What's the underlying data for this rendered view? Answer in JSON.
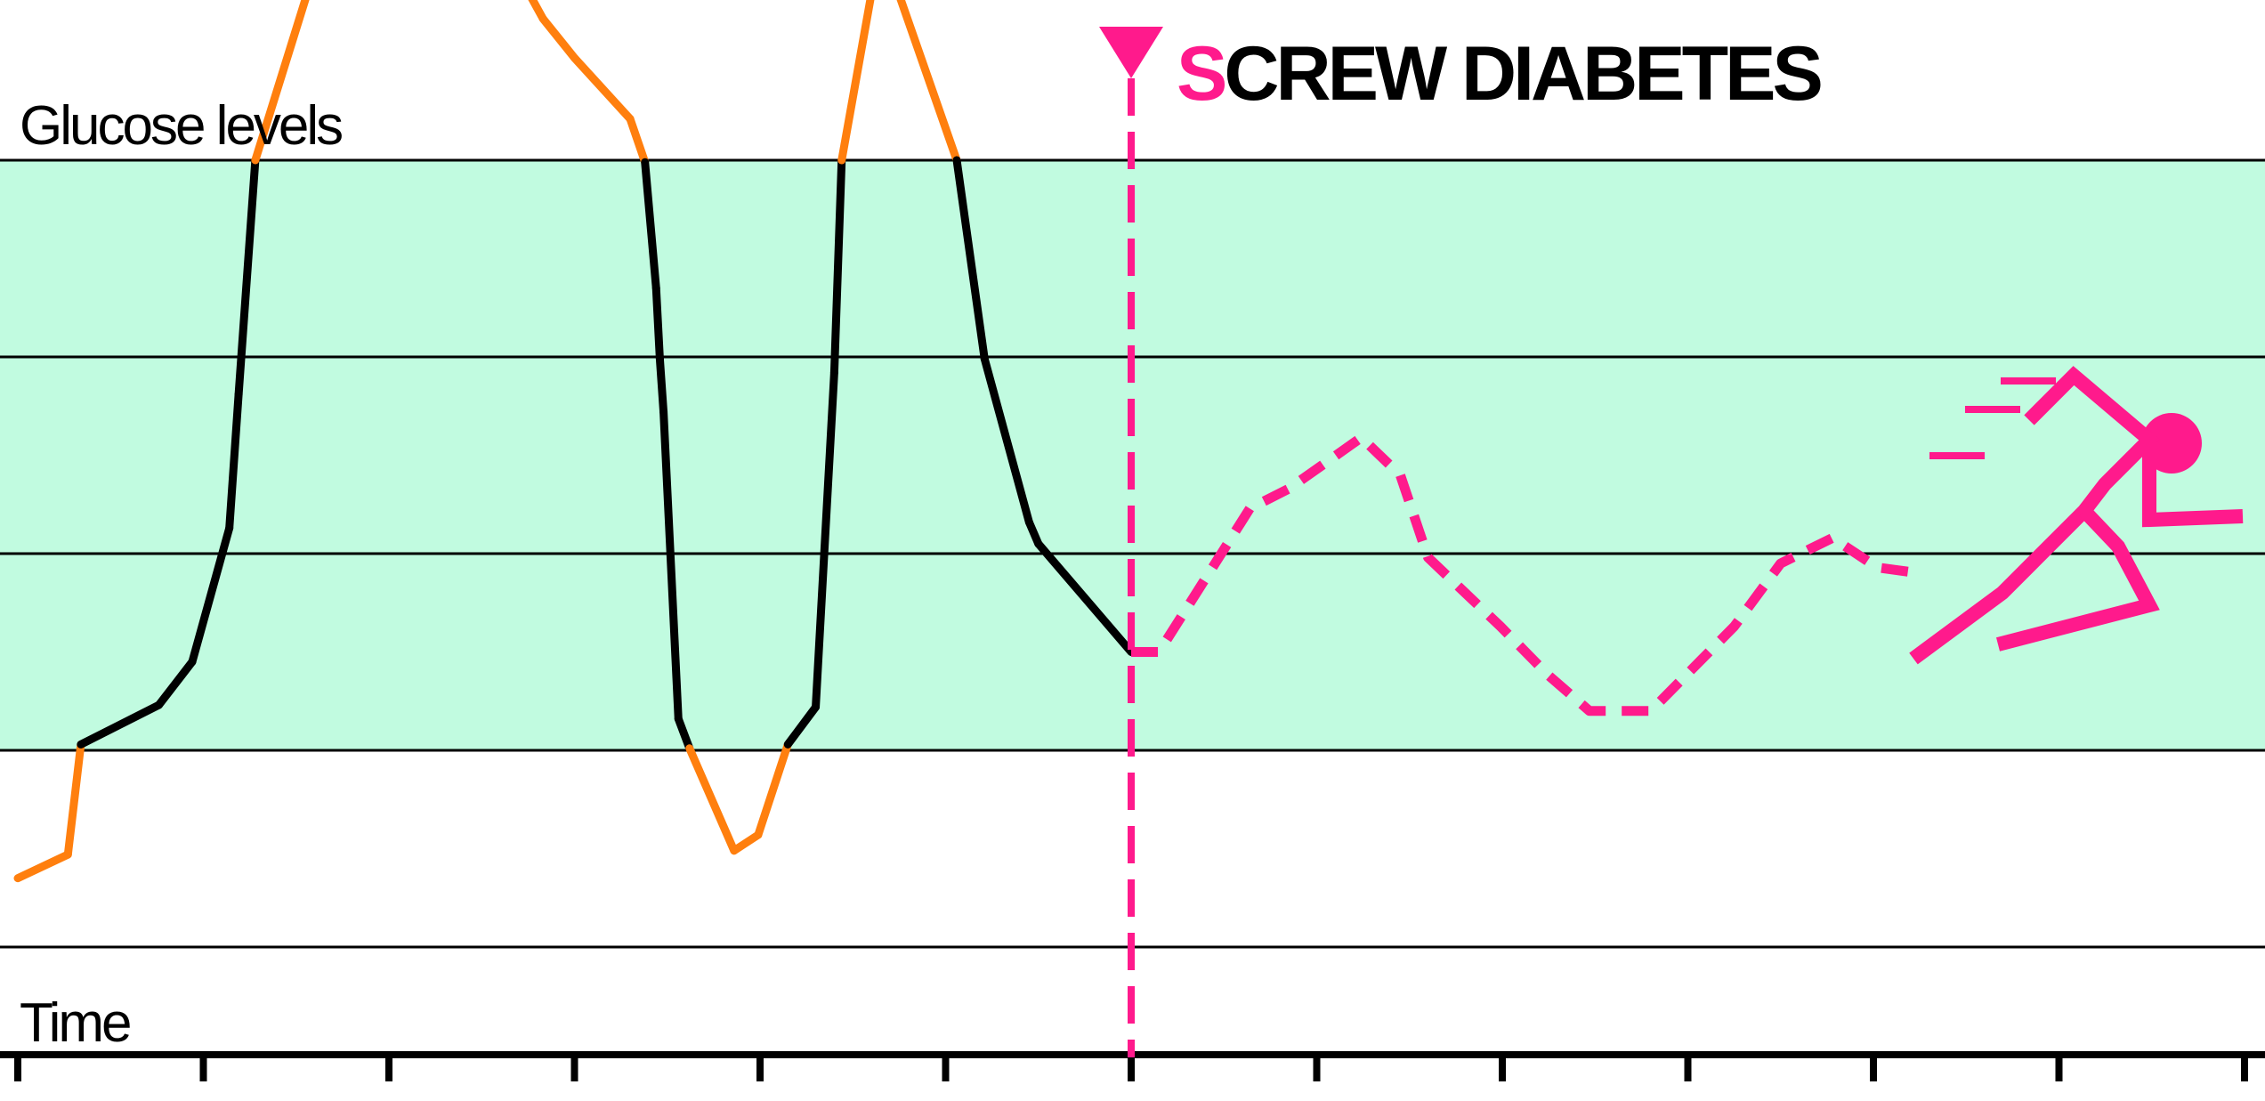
{
  "chart_data": {
    "type": "line",
    "title_first_letter": "S",
    "title_rest": "CREW DIABETES",
    "ylabel": "Glucose levels",
    "xlabel": "Time",
    "grid": true,
    "x_ticks": 13,
    "ylim": [
      0,
      5
    ],
    "target_range": [
      1,
      4
    ],
    "marker_x": 6,
    "colors": {
      "in_range": "#000000",
      "out_of_range": "#ff7f0e",
      "projection": "#ff1a8c",
      "target_band": "#c1fbe0",
      "grid": "#000000"
    },
    "series": [
      {
        "values_x": [
          0,
          0.27,
          0.34,
          0.76,
          0.94,
          1.14,
          1.19,
          1.28,
          1.6,
          1.92,
          2.29,
          2.62,
          2.83,
          3.0,
          3.3,
          3.38,
          3.44,
          3.46,
          3.48,
          3.56,
          3.62,
          3.86,
          3.99,
          4.15,
          4.3,
          4.4,
          4.44,
          4.65,
          5.06,
          5.21,
          5.45,
          5.5,
          6.0
        ],
        "values_y": [
          0.35,
          0.47,
          1.03,
          1.23,
          1.45,
          2.13,
          2.81,
          4.0,
          4.97,
          4.84,
          5.23,
          5.08,
          4.72,
          4.52,
          4.21,
          3.99,
          3.35,
          2.99,
          2.72,
          1.16,
          1.01,
          0.49,
          0.57,
          1.03,
          1.22,
          2.92,
          4.0,
          5.11,
          4.0,
          2.99,
          2.16,
          2.05,
          1.5
        ]
      },
      {
        "name": "projection",
        "values_x": [
          6.0,
          6.15,
          6.64,
          6.85,
          7.24,
          7.45,
          7.6,
          7.99,
          8.25,
          8.47,
          8.8,
          9.25,
          9.5,
          9.78,
          10.02,
          10.25
        ],
        "values_y": [
          1.5,
          1.5,
          2.23,
          2.33,
          2.59,
          2.4,
          1.98,
          1.63,
          1.38,
          1.2,
          1.2,
          1.63,
          1.95,
          2.08,
          1.93,
          1.9
        ]
      }
    ]
  }
}
